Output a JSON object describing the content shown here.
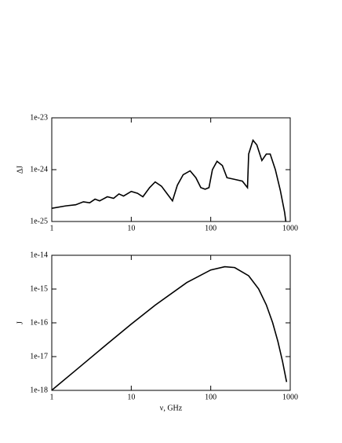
{
  "chart_data": [
    {
      "type": "line",
      "ylabel": "ΔJ",
      "xscale": "log",
      "yscale": "log",
      "color": "#000000",
      "xlim": [
        1,
        1000
      ],
      "xticks": [
        1,
        10,
        100,
        1000
      ],
      "ylim": [
        1e-25,
        1e-23
      ],
      "yticks": [
        1e-25,
        1e-24,
        1e-23
      ],
      "x": [
        1,
        1.5,
        2,
        2.5,
        3,
        3.5,
        4,
        5,
        6,
        7,
        8,
        10,
        12,
        14,
        17,
        20,
        24,
        28,
        33,
        38,
        45,
        55,
        65,
        75,
        85,
        95,
        105,
        120,
        140,
        160,
        200,
        250,
        290,
        300,
        340,
        380,
        440,
        500,
        560,
        650,
        750,
        850,
        880
      ],
      "values": [
        1.8e-25,
        2e-25,
        2.1e-25,
        2.4e-25,
        2.3e-25,
        2.7e-25,
        2.5e-25,
        3e-25,
        2.8e-25,
        3.4e-25,
        3.1e-25,
        3.8e-25,
        3.5e-25,
        3e-25,
        4.5e-25,
        5.8e-25,
        4.8e-25,
        3.5e-25,
        2.5e-25,
        5e-25,
        8e-25,
        9.5e-25,
        7e-25,
        4.5e-25,
        4.2e-25,
        4.5e-25,
        1e-24,
        1.45e-24,
        1.2e-24,
        7e-25,
        6.5e-25,
        6e-25,
        4.5e-25,
        2e-24,
        3.7e-24,
        3e-24,
        1.5e-24,
        2e-24,
        2e-24,
        1e-24,
        4e-25,
        1.5e-25,
        1e-25
      ]
    },
    {
      "type": "line",
      "xlabel": "ν, GHz",
      "ylabel": "J",
      "xscale": "log",
      "yscale": "log",
      "color": "#000000",
      "xlim": [
        1,
        1000
      ],
      "xticks": [
        1,
        10,
        100,
        1000
      ],
      "ylim": [
        1e-18,
        1e-14
      ],
      "yticks": [
        1e-18,
        1e-17,
        1e-16,
        1e-15,
        1e-14
      ],
      "x": [
        1,
        2,
        5,
        10,
        20,
        50,
        100,
        150,
        200,
        300,
        400,
        500,
        600,
        700,
        800,
        900
      ],
      "values": [
        1.01e-18,
        3.93e-18,
        2.39e-17,
        9.15e-17,
        3.34e-16,
        1.56e-15,
        3.67e-15,
        4.59e-15,
        4.33e-15,
        2.47e-15,
        1.01e-15,
        3.4e-16,
        1.02e-16,
        2.79e-17,
        7.2e-18,
        1.77e-18
      ]
    }
  ]
}
